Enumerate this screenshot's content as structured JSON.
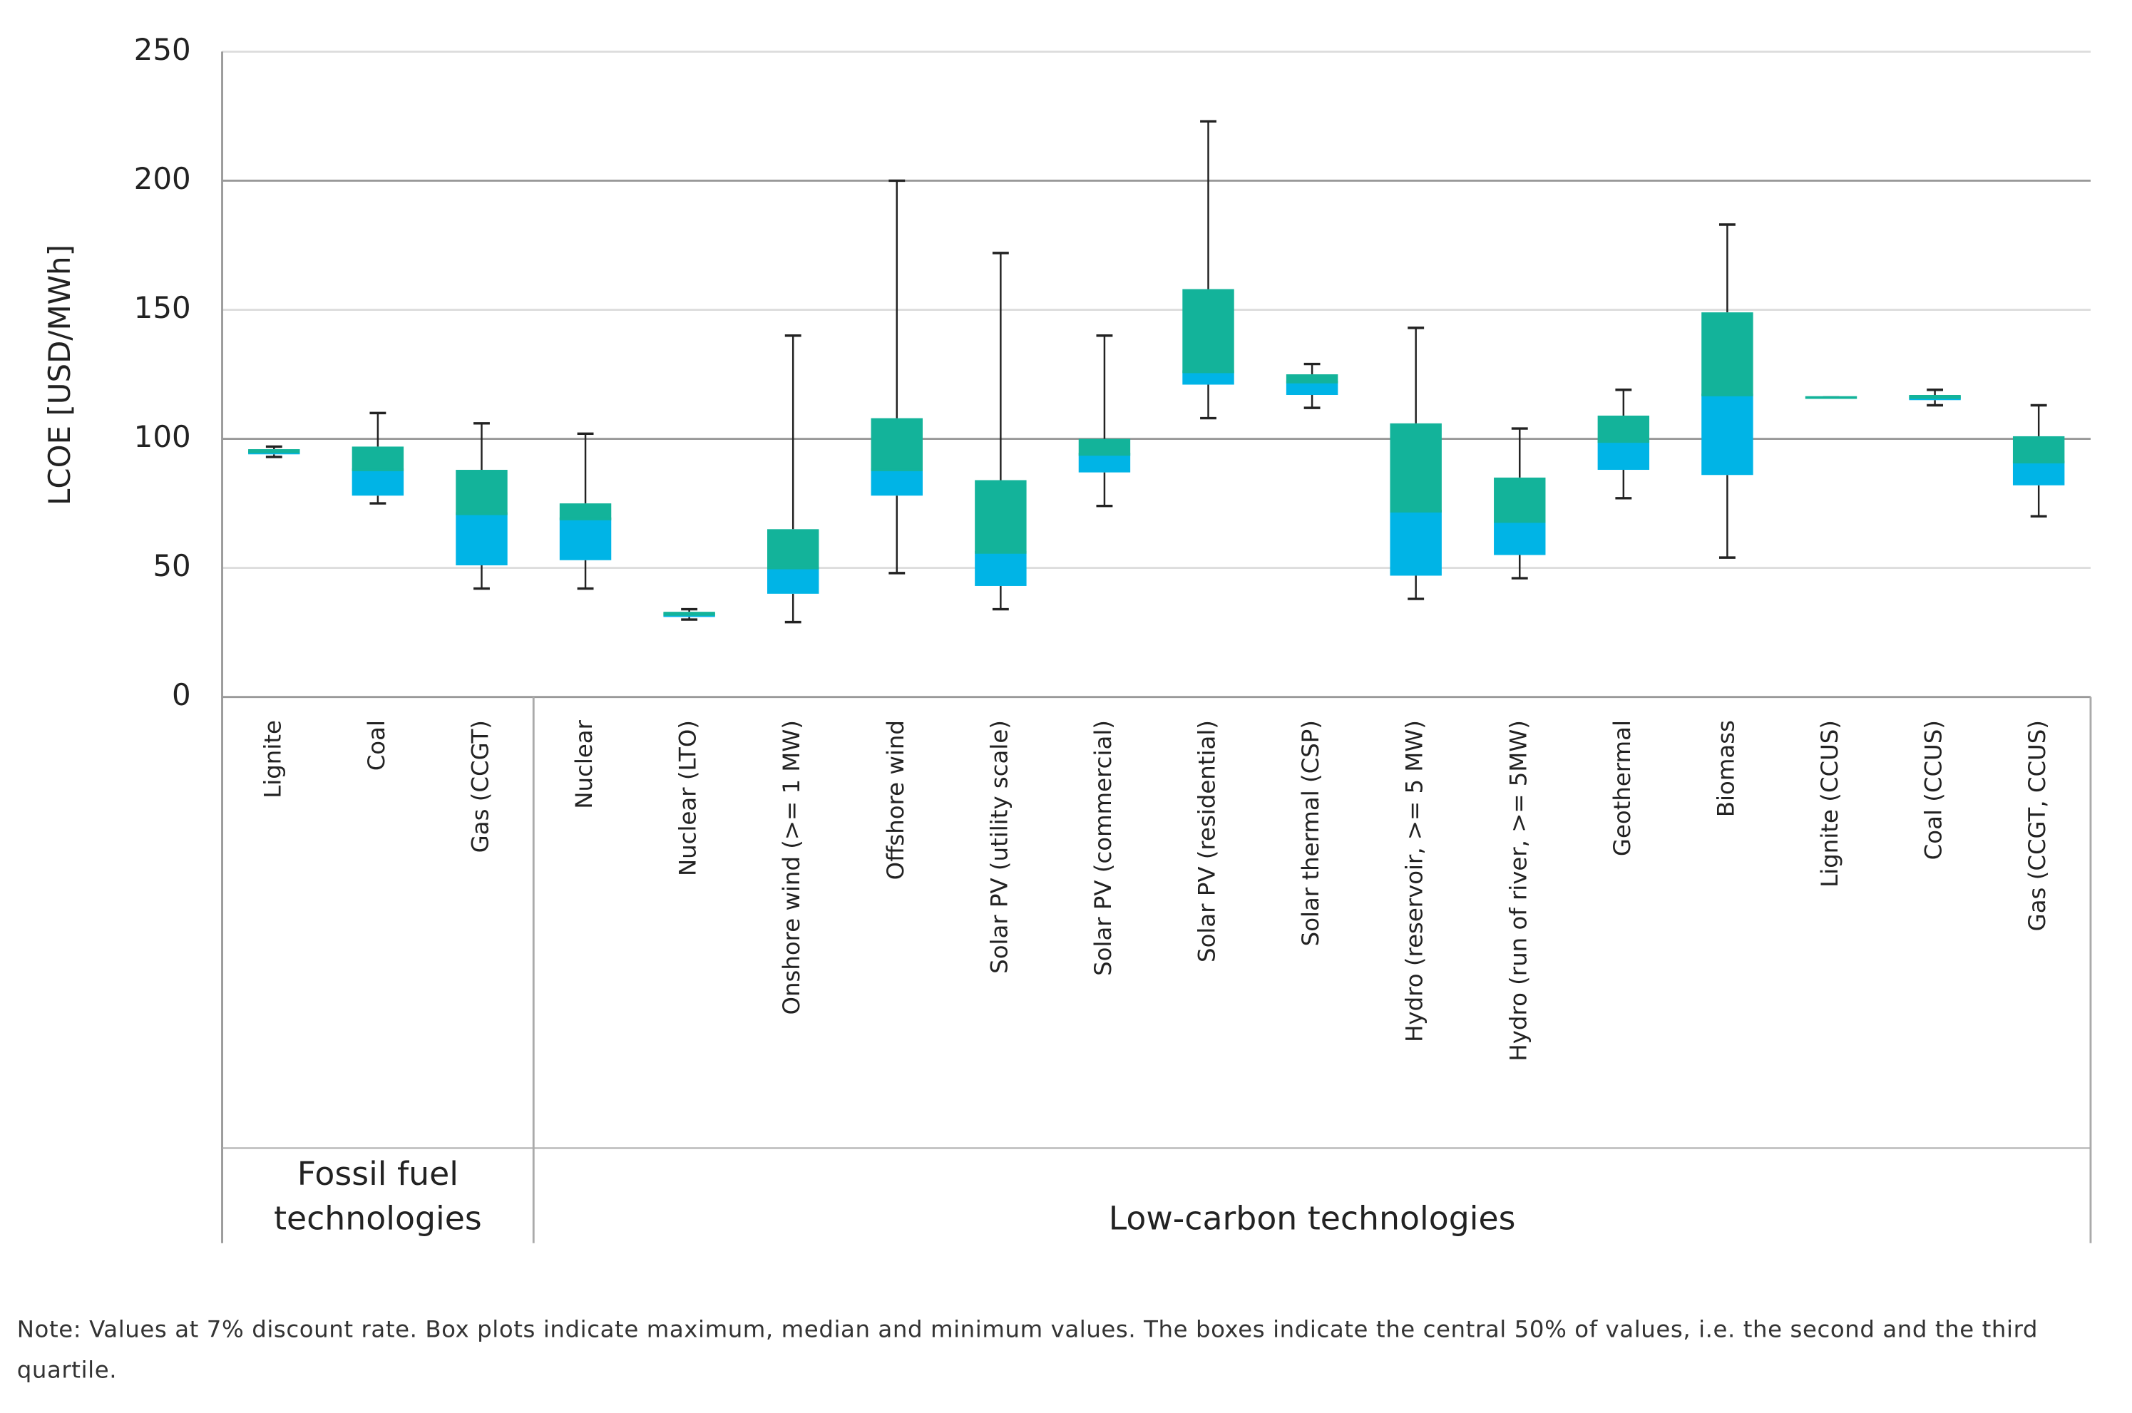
{
  "chart_data": {
    "type": "box",
    "ylabel": "LCOE [USD/MWh]",
    "ylim": [
      0,
      250
    ],
    "yticks": [
      0,
      50,
      100,
      150,
      200,
      250
    ],
    "grid": true,
    "upper_color": "#13b39a",
    "lower_color": "#00b4e6",
    "groups": [
      {
        "label": "Fossil fuel technologies",
        "categories": [
          "Lignite",
          "Coal",
          "Gas (CCGT)"
        ],
        "min": [
          93,
          75,
          42
        ],
        "q1": [
          94,
          78,
          51
        ],
        "median": [
          95,
          88,
          71
        ],
        "q3": [
          96,
          97,
          88
        ],
        "max": [
          97,
          110,
          106
        ]
      },
      {
        "label": "Low-carbon technologies",
        "categories": [
          "Nuclear",
          "Nuclear (LTO)",
          "Onshore wind (>= 1 MW)",
          "Offshore wind",
          "Solar PV (utility scale)",
          "Solar PV (commercial)",
          "Solar PV (residential)",
          "Solar thermal (CSP)",
          "Hydro (reservoir, >= 5 MW)",
          "Hydro (run of river, >= 5MW)",
          "Geothermal",
          "Biomass",
          "Lignite (CCUS)",
          "Coal (CCUS)",
          "Gas (CCGT, CCUS)"
        ],
        "min": [
          42,
          30,
          29,
          48,
          34,
          74,
          108,
          112,
          38,
          46,
          77,
          54,
          116,
          113,
          70
        ],
        "q1": [
          53,
          31,
          40,
          78,
          43,
          87,
          121,
          117,
          47,
          55,
          88,
          86,
          116,
          115,
          82
        ],
        "median": [
          69,
          32,
          50,
          88,
          56,
          94,
          126,
          122,
          72,
          68,
          99,
          117,
          116,
          116,
          91
        ],
        "q3": [
          75,
          33,
          65,
          108,
          84,
          100,
          158,
          125,
          106,
          85,
          109,
          149,
          116,
          117,
          101
        ],
        "max": [
          102,
          34,
          140,
          200,
          172,
          140,
          223,
          129,
          143,
          104,
          119,
          183,
          116,
          119,
          113
        ]
      }
    ]
  },
  "note": "Note: Values at 7% discount rate. Box plots indicate maximum, median and minimum values. The boxes indicate the central 50% of values, i.e. the second and the third quartile."
}
